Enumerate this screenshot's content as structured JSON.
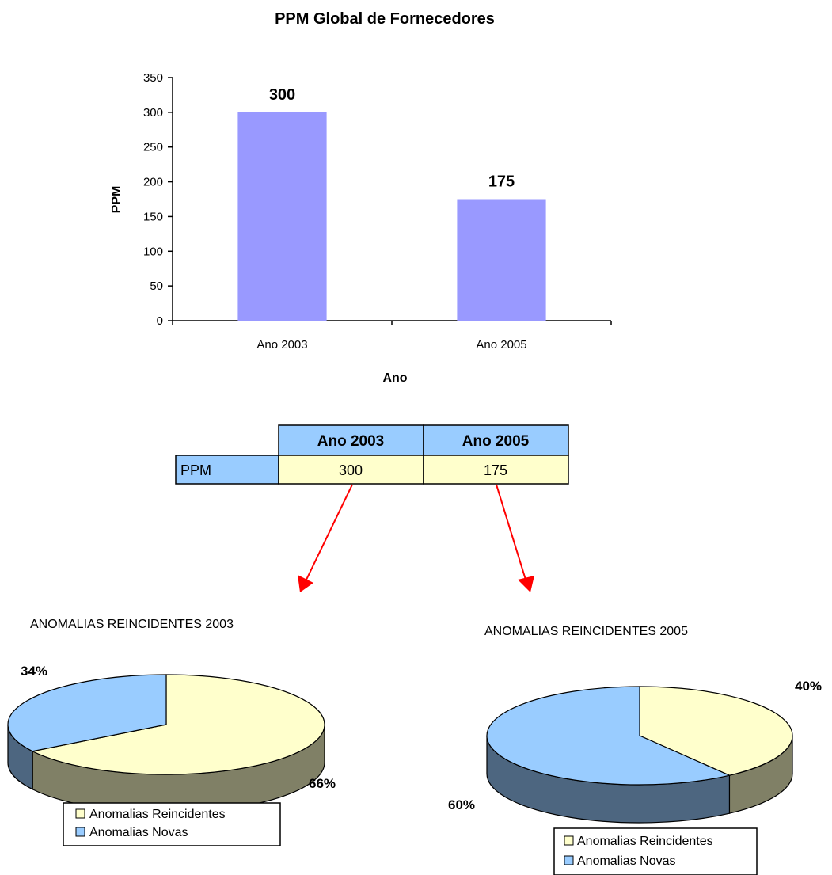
{
  "chart_data": [
    {
      "type": "bar",
      "title": "PPM Global de Fornecedores",
      "xlabel": "Ano",
      "ylabel": "PPM",
      "categories": [
        "Ano 2003",
        "Ano 2005"
      ],
      "values": [
        300,
        175
      ],
      "data_labels": [
        "300",
        "175"
      ],
      "ylim": [
        0,
        350
      ],
      "yticks": [
        "0",
        "50",
        "100",
        "150",
        "200",
        "250",
        "300",
        "350"
      ],
      "ytick_values": [
        0,
        50,
        100,
        150,
        200,
        250,
        300,
        350
      ],
      "grid": false,
      "bar_color": "#9999ff"
    },
    {
      "type": "table",
      "columns": [
        "Ano 2003",
        "Ano 2005"
      ],
      "rows": [
        {
          "label": "PPM",
          "values": [
            "300",
            "175"
          ]
        }
      ],
      "header_color": "#99ccff",
      "cell_color": "#ffffcc"
    },
    {
      "type": "pie",
      "title": "ANOMALIAS REINCIDENTES 2003",
      "slices": [
        {
          "name": "Anomalias Reincidentes",
          "value": 66,
          "label": "66%"
        },
        {
          "name": "Anomalias Novas",
          "value": 34,
          "label": "34%"
        }
      ],
      "legend": [
        "Anomalias Reincidentes",
        "Anomalias Novas"
      ],
      "legend_position": "bottom"
    },
    {
      "type": "pie",
      "title": "ANOMALIAS REINCIDENTES 2005",
      "slices": [
        {
          "name": "Anomalias Reincidentes",
          "value": 40,
          "label": "40%"
        },
        {
          "name": "Anomalias Novas",
          "value": 60,
          "label": "60%"
        }
      ],
      "legend": [
        "Anomalias Reincidentes",
        "Anomalias Novas"
      ],
      "legend_position": "bottom"
    }
  ],
  "colors": {
    "reincidentes_top": "#ffffcc",
    "reincidentes_side": "#808066",
    "novas_top": "#99ccff",
    "novas_side": "#4d6680",
    "arrow": "#ff0000"
  }
}
